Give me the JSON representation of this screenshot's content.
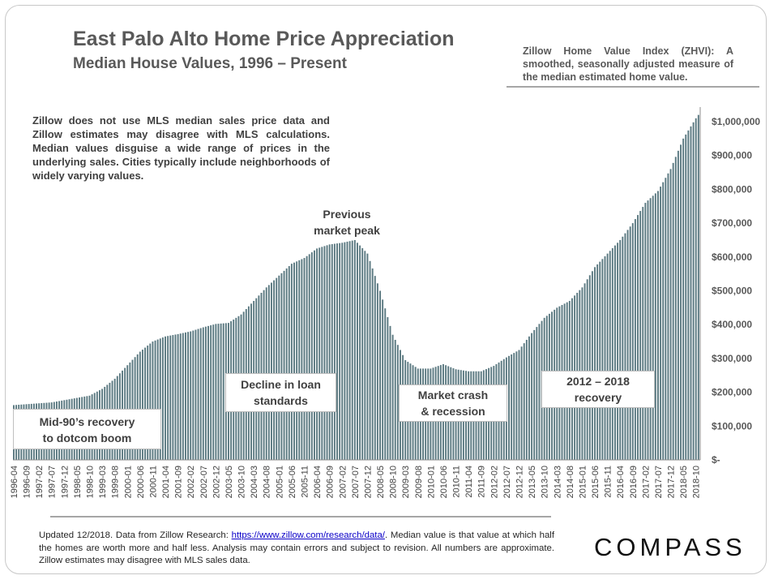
{
  "header": {
    "title": "East Palo Alto Home Price Appreciation",
    "subtitle": "Median House Values, 1996 – Present",
    "zhvi_note": "Zillow Home Value Index (ZHVI): A smoothed, seasonally adjusted measure of the median estimated home value."
  },
  "disclaimer": "Zillow does not use MLS median sales price data and Zillow estimates may disagree with MLS calculations. Median values disguise a wide range of prices in the underlying sales. Cities typically include neighborhoods of widely varying values.",
  "annotations": {
    "peak_line1": "Previous",
    "peak_line2": "market peak",
    "recovery90_line1": "Mid-90’s recovery",
    "recovery90_line2": "to dotcom boom",
    "decline_line1": "Decline in loan",
    "decline_line2": "standards",
    "crash_line1": "Market crash",
    "crash_line2": "& recession",
    "recovery12_line1": "2012 – 2018",
    "recovery12_line2": "recovery"
  },
  "footer": {
    "text_before": "Updated 12/2018. Data from Zillow Research: ",
    "link": "https://www.zillow.com/research/data/",
    "text_after": ". Median value is that value at which half the homes are worth more and half less. Analysis may contain errors and subject to revision. All numbers are approximate. Zillow estimates may disagree with MLS sales data."
  },
  "logo": "COMPASS",
  "colors": {
    "bar": "#5c7a82",
    "text": "#595959",
    "rule": "#a6a6a6"
  },
  "chart_data": {
    "type": "bar",
    "start": "1996-04",
    "end": "2018-11",
    "x_tick_labels": [
      "1996-04",
      "1996-09",
      "1997-02",
      "1997-07",
      "1997-12",
      "1998-05",
      "1998-10",
      "1999-03",
      "1999-08",
      "2000-01",
      "2000-06",
      "2000-11",
      "2001-04",
      "2001-09",
      "2002-02",
      "2002-07",
      "2002-12",
      "2003-05",
      "2003-10",
      "2004-03",
      "2004-08",
      "2005-01",
      "2005-06",
      "2005-11",
      "2006-04",
      "2006-09",
      "2007-02",
      "2007-07",
      "2007-12",
      "2008-05",
      "2008-10",
      "2009-03",
      "2009-08",
      "2010-01",
      "2010-06",
      "2010-11",
      "2011-04",
      "2011-09",
      "2012-02",
      "2012-07",
      "2012-12",
      "2013-05",
      "2013-10",
      "2014-03",
      "2014-08",
      "2015-01",
      "2015-06",
      "2015-11",
      "2016-04",
      "2016-09",
      "2017-02",
      "2017-07",
      "2017-12",
      "2018-05",
      "2018-10"
    ],
    "y_tick_labels": [
      "$-",
      "$100,000",
      "$200,000",
      "$300,000",
      "$400,000",
      "$500,000",
      "$600,000",
      "$700,000",
      "$800,000",
      "$900,000",
      "$1,000,000"
    ],
    "ylim": [
      0,
      1050000
    ],
    "anchors": [
      [
        "1996-04",
        162000
      ],
      [
        "1997-07",
        170000
      ],
      [
        "1998-10",
        190000
      ],
      [
        "1999-03",
        210000
      ],
      [
        "1999-08",
        240000
      ],
      [
        "2000-01",
        280000
      ],
      [
        "2000-06",
        320000
      ],
      [
        "2000-11",
        350000
      ],
      [
        "2001-04",
        365000
      ],
      [
        "2001-09",
        372000
      ],
      [
        "2002-02",
        380000
      ],
      [
        "2002-07",
        392000
      ],
      [
        "2002-12",
        402000
      ],
      [
        "2003-05",
        405000
      ],
      [
        "2003-10",
        430000
      ],
      [
        "2004-03",
        470000
      ],
      [
        "2004-08",
        510000
      ],
      [
        "2005-01",
        545000
      ],
      [
        "2005-06",
        580000
      ],
      [
        "2005-11",
        597000
      ],
      [
        "2006-04",
        625000
      ],
      [
        "2006-09",
        637000
      ],
      [
        "2007-02",
        642000
      ],
      [
        "2007-07",
        650000
      ],
      [
        "2007-12",
        610000
      ],
      [
        "2008-05",
        500000
      ],
      [
        "2008-10",
        370000
      ],
      [
        "2009-03",
        295000
      ],
      [
        "2009-08",
        270000
      ],
      [
        "2010-01",
        270000
      ],
      [
        "2010-06",
        283000
      ],
      [
        "2010-11",
        268000
      ],
      [
        "2011-04",
        262000
      ],
      [
        "2011-09",
        262000
      ],
      [
        "2012-02",
        278000
      ],
      [
        "2012-07",
        303000
      ],
      [
        "2012-12",
        325000
      ],
      [
        "2013-05",
        375000
      ],
      [
        "2013-10",
        420000
      ],
      [
        "2014-03",
        450000
      ],
      [
        "2014-08",
        470000
      ],
      [
        "2015-01",
        510000
      ],
      [
        "2015-06",
        570000
      ],
      [
        "2015-11",
        610000
      ],
      [
        "2016-04",
        650000
      ],
      [
        "2016-09",
        700000
      ],
      [
        "2017-02",
        760000
      ],
      [
        "2017-07",
        795000
      ],
      [
        "2017-12",
        860000
      ],
      [
        "2018-05",
        950000
      ],
      [
        "2018-10",
        1010000
      ],
      [
        "2018-11",
        1020000
      ]
    ]
  }
}
